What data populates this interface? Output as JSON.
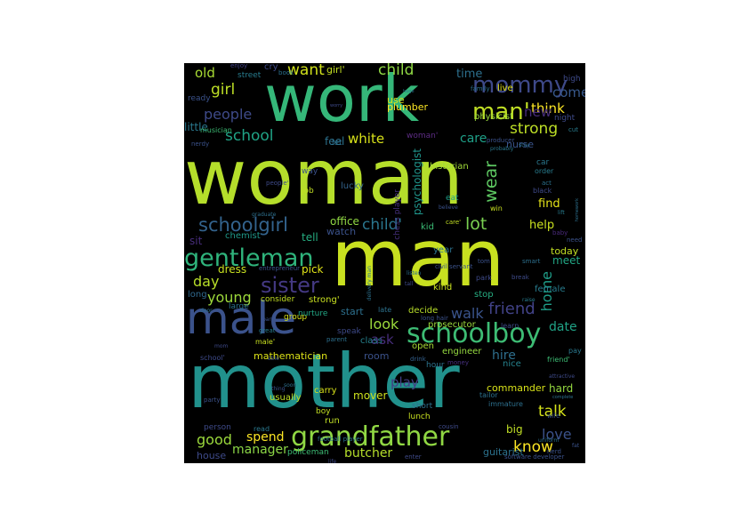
{
  "wordcloud": {
    "background": "#000000",
    "words": [
      {
        "t": "woman",
        "c": "#b5de2b"
      },
      {
        "t": "mother",
        "c": "#21918c"
      },
      {
        "t": "man",
        "c": "#c8e020"
      },
      {
        "t": "work",
        "c": "#35b779"
      },
      {
        "t": "male",
        "c": "#3b528b"
      },
      {
        "t": "grandfather",
        "c": "#90d743"
      },
      {
        "t": "schoolboy",
        "c": "#3dbc74"
      },
      {
        "t": "gentleman",
        "c": "#2fb47c"
      },
      {
        "t": "sister",
        "c": "#443983"
      },
      {
        "t": "mommy",
        "c": "#3e4989"
      },
      {
        "t": "man'",
        "c": "#c0df25"
      },
      {
        "t": "schoolgirl",
        "c": "#33638d"
      },
      {
        "t": "strong",
        "c": "#bddf26"
      },
      {
        "t": "lot",
        "c": "#7ad151"
      },
      {
        "t": "wear",
        "c": "#5ec962"
      },
      {
        "t": "people",
        "c": "#3e4a89"
      },
      {
        "t": "school",
        "c": "#20a386"
      },
      {
        "t": "child'",
        "c": "#2a768e"
      },
      {
        "t": "want",
        "c": "#d0e11c"
      },
      {
        "t": "child",
        "c": "#8fd744"
      },
      {
        "t": "girl",
        "c": "#bddf26"
      },
      {
        "t": "old",
        "c": "#a8db34"
      },
      {
        "t": "come",
        "c": "#38598c"
      },
      {
        "t": "think",
        "c": "#fde725"
      },
      {
        "t": "new",
        "c": "#472c7a"
      },
      {
        "t": "care",
        "c": "#1fa088"
      },
      {
        "t": "white",
        "c": "#d8e219"
      },
      {
        "t": "feel",
        "c": "#2c728e"
      },
      {
        "t": "time",
        "c": "#2d708e"
      },
      {
        "t": "girl'",
        "c": "#c2df23"
      },
      {
        "t": "friend",
        "c": "#414287"
      },
      {
        "t": "walk",
        "c": "#3a548c"
      },
      {
        "t": "look",
        "c": "#9bd93c"
      },
      {
        "t": "ask",
        "c": "#472d7b"
      },
      {
        "t": "young",
        "c": "#9dd93b"
      },
      {
        "t": "day",
        "c": "#b8de29"
      },
      {
        "t": "know",
        "c": "#fde725"
      },
      {
        "t": "talk",
        "c": "#d5e21a"
      },
      {
        "t": "love",
        "c": "#3b528b"
      },
      {
        "t": "good",
        "c": "#9bd93c"
      },
      {
        "t": "spend",
        "c": "#fde725"
      },
      {
        "t": "play",
        "c": "#433e85"
      },
      {
        "t": "hire",
        "c": "#2e6f8e"
      },
      {
        "t": "help",
        "c": "#cae11f"
      },
      {
        "t": "find",
        "c": "#e5e419"
      },
      {
        "t": "home",
        "c": "#1f9e89"
      },
      {
        "t": "date",
        "c": "#20a386"
      },
      {
        "t": "meet",
        "c": "#22a785"
      },
      {
        "t": "today",
        "c": "#c2df23"
      },
      {
        "t": "manager",
        "c": "#8bd646"
      },
      {
        "t": "mathematician",
        "c": "#dde318"
      },
      {
        "t": "butcher",
        "c": "#b5de2b"
      },
      {
        "t": "hard",
        "c": "#95d840"
      },
      {
        "t": "mover",
        "c": "#cde11d"
      },
      {
        "t": "tell",
        "c": "#26ad81"
      },
      {
        "t": "office",
        "c": "#90d743"
      },
      {
        "t": "little",
        "c": "#2a788e"
      },
      {
        "t": "dress",
        "c": "#c8e020"
      },
      {
        "t": "pick",
        "c": "#e2e418"
      },
      {
        "t": "house",
        "c": "#3e4a89"
      },
      {
        "t": "big",
        "c": "#c0df25"
      },
      {
        "t": "guitarist",
        "c": "#2c728e"
      },
      {
        "t": "chess player",
        "c": "#46307e"
      },
      {
        "t": "psychologist",
        "c": "#1f958b"
      },
      {
        "t": "historian",
        "c": "#a0da39"
      },
      {
        "t": "watch",
        "c": "#3b528b"
      },
      {
        "t": "kid",
        "c": "#3bbb75"
      },
      {
        "t": "lucky",
        "c": "#33638d"
      },
      {
        "t": "woman'",
        "c": "#5d2c85"
      },
      {
        "t": "plumber",
        "c": "#fde725"
      },
      {
        "t": "use",
        "c": "#d8e219"
      },
      {
        "t": "physicist",
        "c": "#9bd93c"
      },
      {
        "t": "live",
        "c": "#e5e419"
      },
      {
        "t": "nurse",
        "c": "#3a548c"
      },
      {
        "t": "cry",
        "c": "#3e4a89"
      },
      {
        "t": "street",
        "c": "#287c8e"
      },
      {
        "t": "enjoy",
        "c": "#414287"
      },
      {
        "t": "book",
        "c": "#2c728e"
      },
      {
        "t": "sit",
        "c": "#472d7b"
      },
      {
        "t": "chemist",
        "c": "#1f998a"
      },
      {
        "t": "start",
        "c": "#2d708e"
      },
      {
        "t": "class",
        "c": "#26828e"
      },
      {
        "t": "room",
        "c": "#3b528b"
      },
      {
        "t": "decide",
        "c": "#b8de29"
      },
      {
        "t": "open",
        "c": "#a8db34"
      },
      {
        "t": "engineer",
        "c": "#95d840"
      },
      {
        "t": "commander",
        "c": "#d8e219"
      },
      {
        "t": "nice",
        "c": "#26828e"
      },
      {
        "t": "stop",
        "c": "#26ad81"
      },
      {
        "t": "kind",
        "c": "#cae11f"
      },
      {
        "t": "year",
        "c": "#2c728e"
      },
      {
        "t": "park",
        "c": "#3e4a89"
      },
      {
        "t": "female",
        "c": "#287c8e"
      },
      {
        "t": "long",
        "c": "#30698e"
      },
      {
        "t": "large",
        "c": "#2c728e"
      },
      {
        "t": "usually",
        "c": "#c0df25"
      },
      {
        "t": "carry",
        "c": "#d8e219"
      },
      {
        "t": "boy",
        "c": "#c2df23"
      },
      {
        "t": "person",
        "c": "#3e4a89"
      },
      {
        "t": "read",
        "c": "#2a788e"
      },
      {
        "t": "lunch",
        "c": "#c8e020"
      },
      {
        "t": "short",
        "c": "#2d708e"
      },
      {
        "t": "hour",
        "c": "#2c728e"
      },
      {
        "t": "drink",
        "c": "#34618d"
      },
      {
        "t": "money",
        "c": "#46307e"
      },
      {
        "t": "run",
        "c": "#c0df25"
      },
      {
        "t": "group",
        "c": "#d8e219"
      },
      {
        "t": "policeman",
        "c": "#3dbc74"
      },
      {
        "t": "enter",
        "c": "#3e4a89"
      },
      {
        "t": "baby",
        "c": "#4a2a7c"
      },
      {
        "t": "speak",
        "c": "#3e4a89"
      },
      {
        "t": "nurture",
        "c": "#22a785"
      },
      {
        "t": "late",
        "c": "#2c728e"
      },
      {
        "t": "prosecutor",
        "c": "#9bd93c"
      },
      {
        "t": "learn",
        "c": "#3e4a89"
      },
      {
        "t": "pay",
        "c": "#2a788e"
      },
      {
        "t": "immature",
        "c": "#2d708e"
      },
      {
        "t": "party",
        "c": "#3b528b"
      },
      {
        "t": "act",
        "c": "#2c728e"
      },
      {
        "t": "black",
        "c": "#3e4a89"
      },
      {
        "t": "car",
        "c": "#2a788e"
      },
      {
        "t": "order",
        "c": "#287c8e"
      },
      {
        "t": "win",
        "c": "#c8e020"
      },
      {
        "t": "eat",
        "c": "#1fa088"
      },
      {
        "t": "job",
        "c": "#c2df23"
      },
      {
        "t": "way",
        "c": "#3b528b"
      },
      {
        "t": "let",
        "c": "#2d708e"
      },
      {
        "t": "ready",
        "c": "#3b528b"
      },
      {
        "t": "high",
        "c": "#3e4a89"
      },
      {
        "t": "night",
        "c": "#3e4a89"
      },
      {
        "t": "cut",
        "c": "#287c8e"
      },
      {
        "t": "musician",
        "c": "#3dbc74"
      },
      {
        "t": "nerdy",
        "c": "#3b528b"
      },
      {
        "t": "family",
        "c": "#2d708e"
      },
      {
        "t": "huge",
        "c": "#2c728e"
      },
      {
        "t": "worry",
        "c": "#3e4a89"
      },
      {
        "t": "producer",
        "c": "#3b528b"
      },
      {
        "t": "probably",
        "c": "#2a788e"
      },
      {
        "t": "need",
        "c": "#3b528b"
      },
      {
        "t": "smart",
        "c": "#2d708e"
      },
      {
        "t": "break",
        "c": "#3e4a89"
      },
      {
        "t": "raise",
        "c": "#287c8e"
      },
      {
        "t": "strong'",
        "c": "#c8e020"
      },
      {
        "t": "consider",
        "c": "#c2df23"
      },
      {
        "t": "care'",
        "c": "#c2df23"
      },
      {
        "t": "civil servant",
        "c": "#3b528b"
      },
      {
        "t": "delivery man",
        "c": "#2c728e"
      },
      {
        "t": "listen",
        "c": "#2d708e"
      },
      {
        "t": "tall",
        "c": "#3e4a89"
      },
      {
        "t": "tom",
        "c": "#3b528b"
      },
      {
        "t": "long hair",
        "c": "#3b528b"
      },
      {
        "t": "male'",
        "c": "#c8e020"
      },
      {
        "t": "parent",
        "c": "#2d708e"
      },
      {
        "t": "great",
        "c": "#287c8e"
      },
      {
        "t": "school'",
        "c": "#3e4a89"
      },
      {
        "t": "able",
        "c": "#3b528b"
      },
      {
        "t": "friend'",
        "c": "#3dbc74"
      },
      {
        "t": "attractive",
        "c": "#3e4a89"
      },
      {
        "t": "complete",
        "c": "#2c728e"
      },
      {
        "t": "wife",
        "c": "#3b528b"
      },
      {
        "t": "uniform",
        "c": "#2d708e"
      },
      {
        "t": "software developer",
        "c": "#3b528b"
      },
      {
        "t": "football player",
        "c": "#2c728e"
      },
      {
        "t": "cousin",
        "c": "#3e4a89"
      },
      {
        "t": "tailor",
        "c": "#2c728e"
      },
      {
        "t": "nerd",
        "c": "#3b528b"
      },
      {
        "t": "homework",
        "c": "#2d708e"
      },
      {
        "t": "mom",
        "c": "#3e4a89"
      },
      {
        "t": "soon",
        "c": "#2d708e"
      },
      {
        "t": "thing",
        "c": "#3b528b"
      },
      {
        "t": "entrepreneur",
        "c": "#3b528b"
      },
      {
        "t": "graduate",
        "c": "#2d708e"
      },
      {
        "t": "people'",
        "c": "#3e4a89"
      },
      {
        "t": "believe",
        "c": "#3b528b"
      },
      {
        "t": "lift",
        "c": "#287c8e"
      },
      {
        "t": "stay",
        "c": "#2d708e"
      },
      {
        "t": "life",
        "c": "#3e4a89"
      },
      {
        "t": "door",
        "c": "#2c728e"
      },
      {
        "t": "pant",
        "c": "#3b528b"
      },
      {
        "t": "fat",
        "c": "#3b528b"
      }
    ]
  }
}
